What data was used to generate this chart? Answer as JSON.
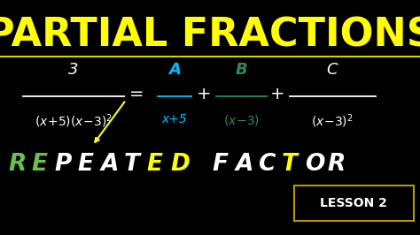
{
  "background_color": "#000000",
  "title_text": "PARTIAL FRACTIONS",
  "title_color": "#FFFF00",
  "title_fontsize": 32,
  "title_underline_color": "#FFFF00",
  "white": "#FFFFFF",
  "cyan": "#00BFFF",
  "teal": "#2E8B57",
  "green": "#6BBF4E",
  "yellow": "#FFFF00",
  "gold": "#B8960C",
  "lesson_box_color": "#B8960C",
  "lesson_text": "LESSON 2",
  "arrow_color": "#FFFF00",
  "repeated_letters": [
    [
      "R",
      "#6BBF4E"
    ],
    [
      "E",
      "#6BBF4E"
    ],
    [
      "P",
      "#FFFFFF"
    ],
    [
      "E",
      "#FFFFFF"
    ],
    [
      "A",
      "#FFFFFF"
    ],
    [
      "T",
      "#FFFFFF"
    ],
    [
      "E",
      "#FFFF00"
    ],
    [
      "D",
      "#FFFF00"
    ],
    [
      " ",
      "#FFFFFF"
    ],
    [
      "F",
      "#FFFFFF"
    ],
    [
      "A",
      "#FFFFFF"
    ],
    [
      "C",
      "#FFFFFF"
    ],
    [
      "T",
      "#FFFF00"
    ],
    [
      "O",
      "#FFFFFF"
    ],
    [
      "R",
      "#FFFFFF"
    ]
  ]
}
